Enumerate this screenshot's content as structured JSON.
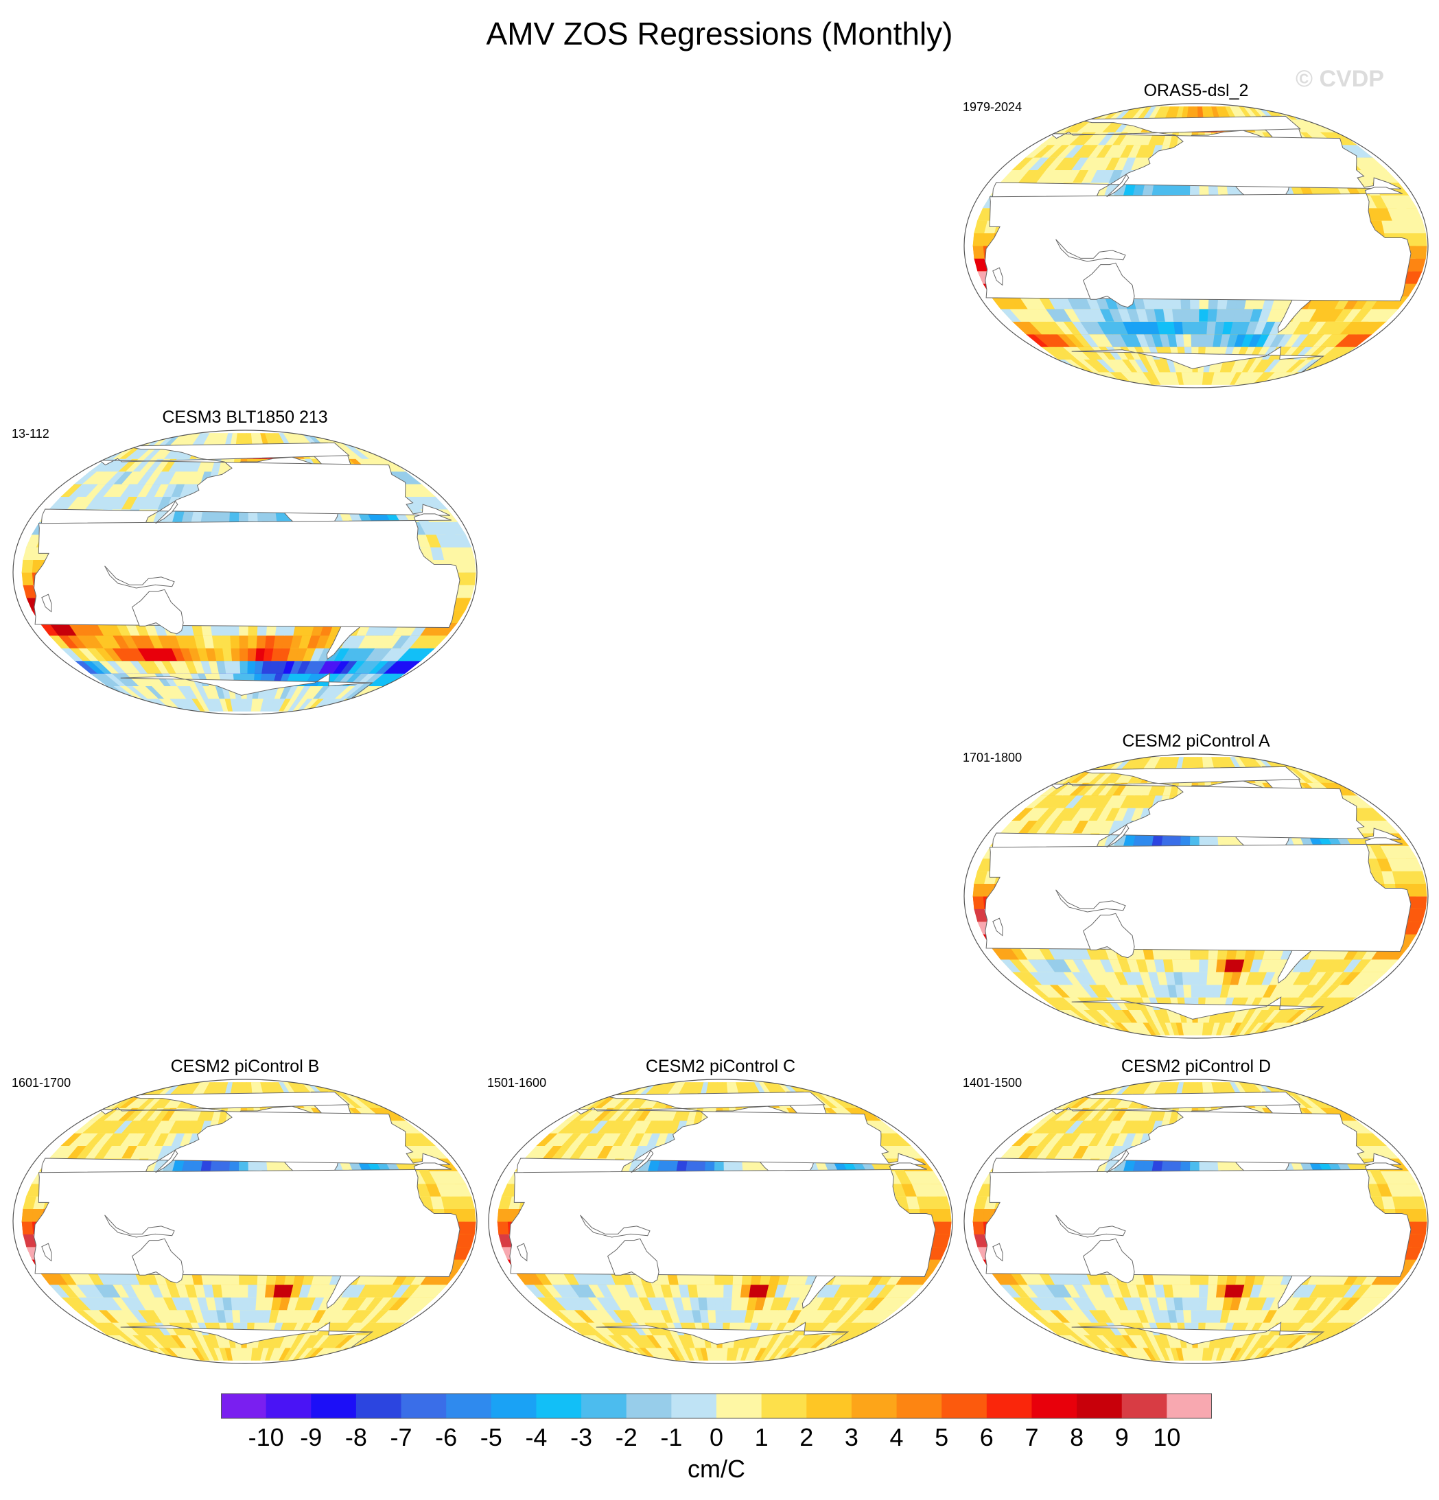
{
  "title": "AMV ZOS Regressions (Monthly)",
  "watermark": "© CVDP",
  "panels": [
    {
      "title": "ORAS5-dsl_2",
      "years": "1979-2024",
      "theme": "obs"
    },
    {
      "title": "CESM3 BLT1850 213",
      "years": "13-112",
      "theme": "cesm3"
    },
    {
      "title": "CESM2 piControl A",
      "years": "1701-1800",
      "theme": "cesm2"
    },
    {
      "title": "CESM2 piControl B",
      "years": "1601-1700",
      "theme": "cesm2"
    },
    {
      "title": "CESM2 piControl C",
      "years": "1501-1600",
      "theme": "cesm2"
    },
    {
      "title": "CESM2 piControl D",
      "years": "1401-1500",
      "theme": "cesm2"
    }
  ],
  "colorbar": {
    "unit": "cm/C",
    "labels": [
      "-10",
      "-9",
      "-8",
      "-7",
      "-6",
      "-5",
      "-4",
      "-3",
      "-2",
      "-1",
      "0",
      "1",
      "2",
      "3",
      "4",
      "5",
      "6",
      "7",
      "8",
      "9",
      "10"
    ],
    "colors": [
      "#7a1ff0",
      "#4a14f5",
      "#1c0ff7",
      "#2c45e0",
      "#3a6ee8",
      "#2f8aee",
      "#1aa2f5",
      "#12bff7",
      "#4cbcee",
      "#97cdea",
      "#bfe3f5",
      "#fef7a4",
      "#fde04b",
      "#fec625",
      "#fda519",
      "#fd8512",
      "#fc5a0d",
      "#fa260b",
      "#e8000b",
      "#c8000a",
      "#d83c44",
      "#f8a8b0"
    ]
  }
}
